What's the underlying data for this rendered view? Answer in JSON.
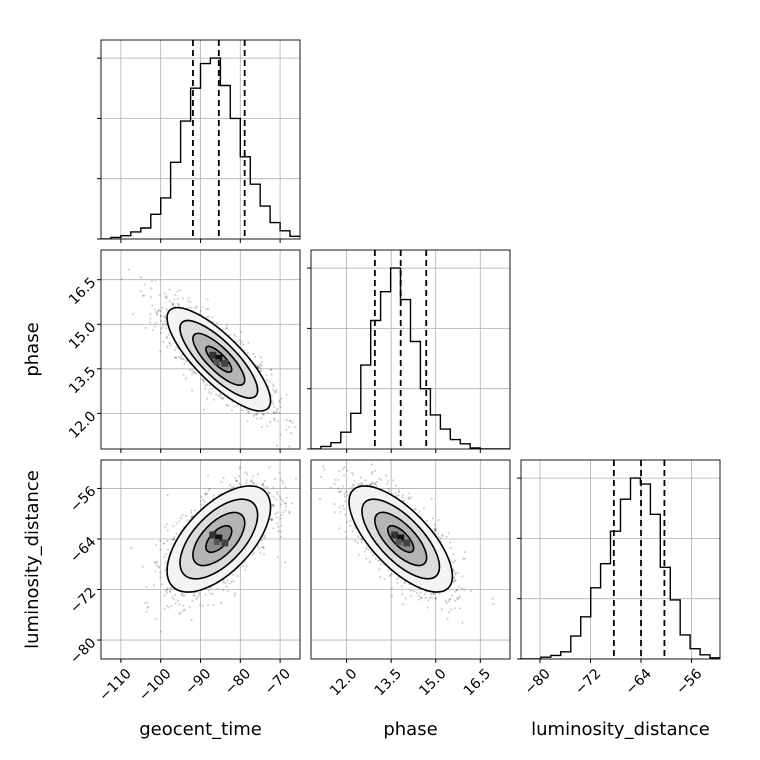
{
  "chart_data": {
    "type": "corner",
    "parameters": [
      "geocent_time",
      "phase",
      "luminosity_distance"
    ],
    "axis_labels": {
      "geocent_time": "geocent_time",
      "phase": "phase",
      "luminosity_distance": "luminosity_distance"
    },
    "ranges": {
      "geocent_time": [
        -115,
        -65
      ],
      "phase": [
        10.8,
        17.5
      ],
      "luminosity_distance": [
        -83,
        -51.5
      ]
    },
    "ticks": {
      "geocent_time": [
        -110,
        -100,
        -90,
        -80,
        -70
      ],
      "phase": [
        12.0,
        13.5,
        15.0,
        16.5
      ],
      "luminosity_distance": [
        -80,
        -72,
        -64,
        -56
      ]
    },
    "tick_labels": {
      "geocent_time": [
        "−110",
        "−100",
        "−90",
        "−80",
        "−70"
      ],
      "phase": [
        "12.0",
        "13.5",
        "15.0",
        "16.5"
      ],
      "luminosity_distance": [
        "−80",
        "−72",
        "−64",
        "−56"
      ]
    },
    "quantiles": {
      "geocent_time": [
        -91.9,
        -85.4,
        -78.9
      ],
      "phase": [
        12.95,
        13.82,
        14.68
      ],
      "luminosity_distance": [
        -68.3,
        -64.0,
        -60.3
      ]
    },
    "histograms": {
      "geocent_time": {
        "edges": [
          -115,
          -112.5,
          -110,
          -107.5,
          -105,
          -102.5,
          -100,
          -97.5,
          -95,
          -92.5,
          -90,
          -87.5,
          -85,
          -82.5,
          -80,
          -77.5,
          -75,
          -72.5,
          -70,
          -67.5,
          -65
        ],
        "counts": [
          0,
          3,
          6,
          13,
          20,
          45,
          75,
          140,
          215,
          275,
          320,
          330,
          280,
          220,
          150,
          100,
          60,
          30,
          15,
          5
        ]
      },
      "phase": {
        "edges": [
          10.8,
          11.135,
          11.47,
          11.805,
          12.14,
          12.475,
          12.81,
          13.145,
          13.48,
          13.815,
          14.15,
          14.485,
          14.82,
          15.155,
          15.49,
          15.825,
          16.16,
          16.495,
          16.83,
          17.165,
          17.5
        ],
        "counts": [
          0,
          5,
          12,
          32,
          68,
          160,
          245,
          300,
          345,
          285,
          205,
          115,
          65,
          38,
          18,
          10,
          2,
          0,
          0,
          0
        ]
      },
      "luminosity_distance": {
        "edges": [
          -83,
          -81.425,
          -79.85,
          -78.275,
          -76.7,
          -75.125,
          -73.55,
          -71.975,
          -70.4,
          -68.825,
          -67.25,
          -65.675,
          -64.1,
          -62.525,
          -60.95,
          -59.375,
          -57.8,
          -56.225,
          -54.65,
          -53.075,
          -51.5
        ],
        "counts": [
          0,
          0,
          3,
          6,
          12,
          38,
          70,
          118,
          158,
          212,
          265,
          300,
          290,
          240,
          152,
          98,
          40,
          17,
          7,
          2
        ]
      }
    },
    "correlations": {
      "phase|geocent_time": -0.8,
      "luminosity_distance|geocent_time": 0.6,
      "luminosity_distance|phase": -0.7
    },
    "means": {
      "geocent_time": -85.4,
      "phase": 13.82,
      "luminosity_distance": -64.0
    },
    "stds": {
      "geocent_time": 6.5,
      "phase": 0.87,
      "luminosity_distance": 4.2
    },
    "contour_levels_sigma": [
      0.5,
      1.0,
      1.5,
      2.0
    ],
    "grid": true,
    "colors": {
      "line": "#000000",
      "grid": "#b0b0b0",
      "points": "#000000"
    }
  }
}
